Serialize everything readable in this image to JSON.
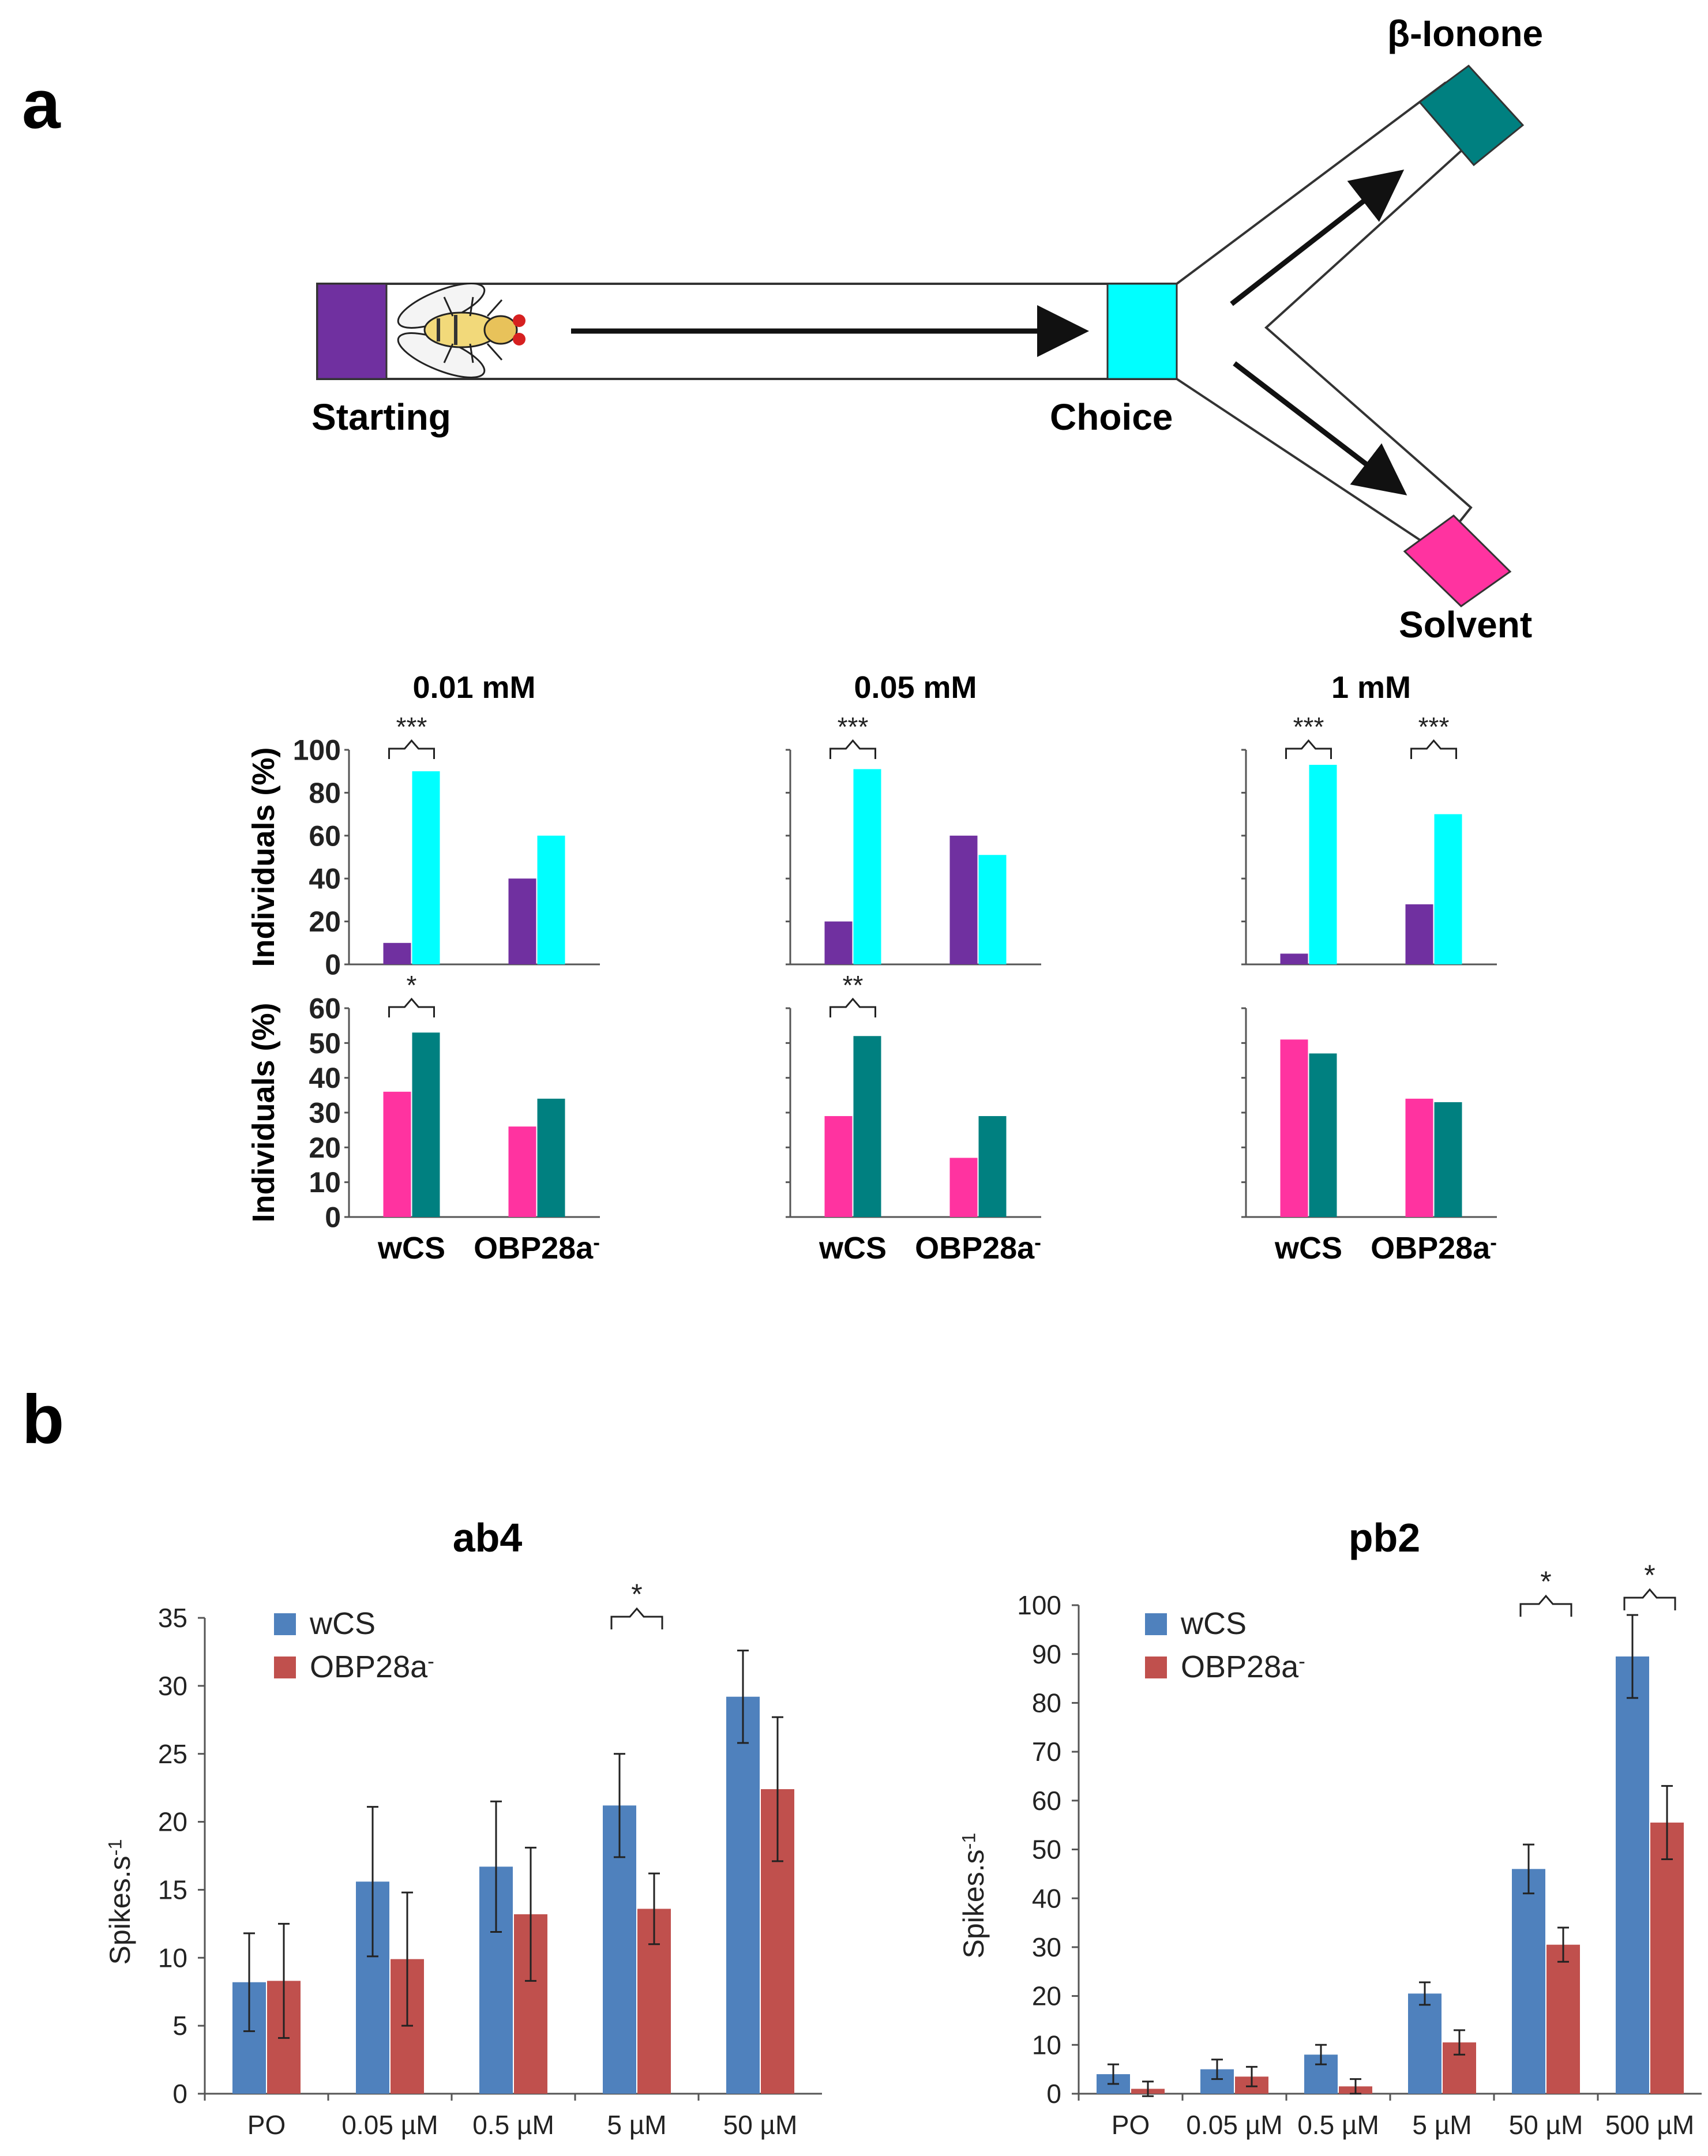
{
  "panel_a": {
    "letter": "a",
    "labels": {
      "starting": "Starting",
      "choice": "Choice",
      "odor": "β-Ionone",
      "solvent": "Solvent"
    },
    "colors": {
      "starting": "#7030A0",
      "choice": "#00FFFF",
      "odor": "#008080",
      "solvent": "#FF33A0"
    }
  },
  "panel_b": {
    "letter": "b"
  },
  "chart_data": [
    {
      "id": "a-top-0.01",
      "type": "bar",
      "title": "0.01 mM",
      "ylabel": "Individuals (%)",
      "ylim": [
        0,
        100
      ],
      "yticks": [
        "0",
        "20",
        "40",
        "60",
        "80",
        "100"
      ],
      "show_tick_labels": true,
      "categories": [
        "wCS",
        "OBP28a-"
      ],
      "series": [
        {
          "name": "Starting",
          "color": "#7030A0",
          "values": [
            10,
            40
          ]
        },
        {
          "name": "Choice",
          "color": "#00FFFF",
          "values": [
            90,
            60
          ]
        }
      ],
      "significance": [
        {
          "category": 0,
          "label": "***"
        }
      ]
    },
    {
      "id": "a-top-0.05",
      "type": "bar",
      "title": "0.05 mM",
      "ylabel": "",
      "ylim": [
        0,
        100
      ],
      "yticks": [
        "0",
        "20",
        "40",
        "60",
        "80",
        "100"
      ],
      "show_tick_labels": false,
      "categories": [
        "wCS",
        "OBP28a-"
      ],
      "series": [
        {
          "name": "Starting",
          "color": "#7030A0",
          "values": [
            20,
            60
          ]
        },
        {
          "name": "Choice",
          "color": "#00FFFF",
          "values": [
            91,
            51
          ]
        }
      ],
      "significance": [
        {
          "category": 0,
          "label": "***"
        }
      ]
    },
    {
      "id": "a-top-1",
      "type": "bar",
      "title": "1 mM",
      "ylabel": "",
      "ylim": [
        0,
        100
      ],
      "yticks": [
        "0",
        "20",
        "40",
        "60",
        "80",
        "100"
      ],
      "show_tick_labels": false,
      "categories": [
        "wCS",
        "OBP28a-"
      ],
      "series": [
        {
          "name": "Starting",
          "color": "#7030A0",
          "values": [
            5,
            28
          ]
        },
        {
          "name": "Choice",
          "color": "#00FFFF",
          "values": [
            93,
            70
          ]
        }
      ],
      "significance": [
        {
          "category": 0,
          "label": "***"
        },
        {
          "category": 1,
          "label": "***"
        }
      ]
    },
    {
      "id": "a-bot-0.01",
      "type": "bar",
      "title": "",
      "ylabel": "Individuals (%)",
      "ylim": [
        0,
        60
      ],
      "yticks": [
        "0",
        "10",
        "20",
        "30",
        "40",
        "50",
        "60"
      ],
      "show_tick_labels": true,
      "categories": [
        "wCS",
        "OBP28a-"
      ],
      "category_labels": true,
      "series": [
        {
          "name": "Solvent",
          "color": "#FF33A0",
          "values": [
            36,
            26
          ]
        },
        {
          "name": "β-Ionone",
          "color": "#008080",
          "values": [
            53,
            34
          ]
        }
      ],
      "significance": [
        {
          "category": 0,
          "label": "*"
        }
      ]
    },
    {
      "id": "a-bot-0.05",
      "type": "bar",
      "title": "",
      "ylabel": "",
      "ylim": [
        0,
        60
      ],
      "yticks": [
        "0",
        "10",
        "20",
        "30",
        "40",
        "50",
        "60"
      ],
      "show_tick_labels": false,
      "categories": [
        "wCS",
        "OBP28a-"
      ],
      "category_labels": true,
      "series": [
        {
          "name": "Solvent",
          "color": "#FF33A0",
          "values": [
            29,
            17
          ]
        },
        {
          "name": "β-Ionone",
          "color": "#008080",
          "values": [
            52,
            29
          ]
        }
      ],
      "significance": [
        {
          "category": 0,
          "label": "**"
        }
      ]
    },
    {
      "id": "a-bot-1",
      "type": "bar",
      "title": "",
      "ylabel": "",
      "ylim": [
        0,
        60
      ],
      "yticks": [
        "0",
        "10",
        "20",
        "30",
        "40",
        "50",
        "60"
      ],
      "show_tick_labels": false,
      "categories": [
        "wCS",
        "OBP28a-"
      ],
      "category_labels": true,
      "series": [
        {
          "name": "Solvent",
          "color": "#FF33A0",
          "values": [
            51,
            34
          ]
        },
        {
          "name": "β-Ionone",
          "color": "#008080",
          "values": [
            47,
            33
          ]
        }
      ],
      "significance": []
    },
    {
      "id": "b-ab4",
      "type": "bar",
      "title": "ab4",
      "ylabel": "Spikes.s-1",
      "ylim": [
        0,
        35
      ],
      "yticks": [
        "0",
        "5",
        "10",
        "15",
        "20",
        "25",
        "30",
        "35"
      ],
      "categories": [
        "PO",
        "0.05 µM",
        "0.5 µM",
        "5 µM",
        "50 µM"
      ],
      "series": [
        {
          "name": "wCS",
          "color": "#4F81BD",
          "values": [
            8.2,
            15.6,
            16.7,
            21.2,
            29.2
          ],
          "errors": [
            3.6,
            5.5,
            4.8,
            3.8,
            3.4
          ]
        },
        {
          "name": "OBP28a-",
          "color": "#C0504D",
          "values": [
            8.3,
            9.9,
            13.2,
            13.6,
            22.4
          ],
          "errors": [
            4.2,
            4.9,
            4.9,
            2.6,
            5.3
          ]
        }
      ],
      "significance": [
        {
          "category": 3,
          "label": "*"
        }
      ]
    },
    {
      "id": "b-pb2",
      "type": "bar",
      "title": "pb2",
      "ylabel": "Spikes.s-1",
      "ylim": [
        0,
        100
      ],
      "yticks": [
        "0",
        "10",
        "20",
        "30",
        "40",
        "50",
        "60",
        "70",
        "80",
        "90",
        "100"
      ],
      "categories": [
        "PO",
        "0.05 µM",
        "0.5 µM",
        "5 µM",
        "50 µM",
        "500 µM"
      ],
      "series": [
        {
          "name": "wCS",
          "color": "#4F81BD",
          "values": [
            4,
            5,
            8,
            20.5,
            46,
            89.5
          ],
          "errors": [
            2,
            2,
            2,
            2.3,
            5,
            8.5
          ]
        },
        {
          "name": "OBP28a-",
          "color": "#C0504D",
          "values": [
            1,
            3.5,
            1.5,
            10.5,
            30.5,
            55.5
          ],
          "errors": [
            1.5,
            2,
            1.5,
            2.5,
            3.5,
            7.5
          ]
        }
      ],
      "significance": [
        {
          "category": 4,
          "label": "*"
        },
        {
          "category": 5,
          "label": "*"
        }
      ]
    }
  ]
}
